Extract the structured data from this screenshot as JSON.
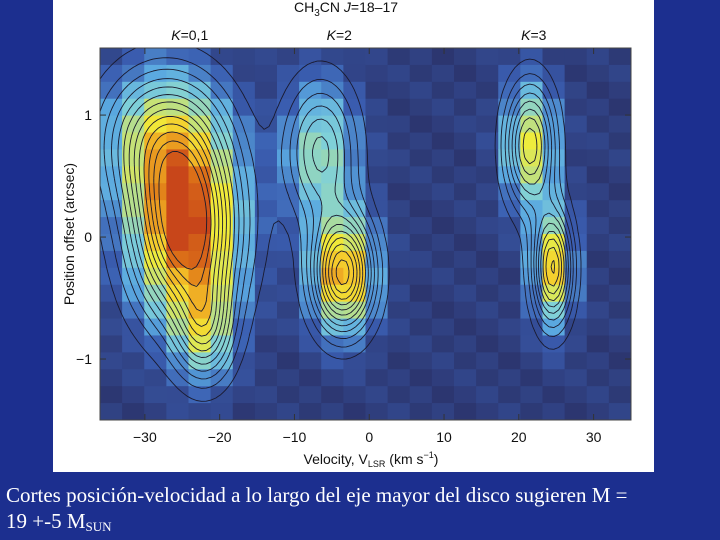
{
  "slide": {
    "background_color": "#1c2f8f",
    "caption_line1": "Cortes posición-velocidad a lo largo del eje mayor del disco sugieren M =",
    "caption_line2_prefix": "19 +-5 M",
    "caption_line2_subscript": "SUN"
  },
  "chart_data": {
    "type": "heatmap",
    "title": "CH3CN J=18–17",
    "title_parts": {
      "molecule": "CH",
      "sub1": "3",
      "molecule2": "CN ",
      "italic_j": "J",
      "transition": "=18–17"
    },
    "panel_labels": [
      {
        "text": "K=0,1",
        "x": -24
      },
      {
        "text": "K=2",
        "x": -4
      },
      {
        "text": "K=3",
        "x": 22
      }
    ],
    "xlabel": "Velocity, V",
    "xlabel_sub": "LSR",
    "xlabel_unit": " (km s",
    "xlabel_unit_sup": "−1",
    "xlabel_unit_end": ")",
    "ylabel": "Position offset (arcsec)",
    "xlim": [
      -36,
      35
    ],
    "ylim": [
      -1.5,
      1.55
    ],
    "x_ticks": [
      -30,
      -20,
      -10,
      0,
      10,
      20,
      30
    ],
    "x_tick_labels": [
      "−30",
      "−20",
      "−10",
      "0",
      "10",
      "20",
      "30"
    ],
    "y_ticks": [
      1,
      0,
      -1
    ],
    "y_tick_labels": [
      "1",
      "0",
      "−1"
    ],
    "grid": false,
    "colormap": [
      "#2c3670",
      "#3a5db0",
      "#5aa8e0",
      "#7fd0d8",
      "#b8df8a",
      "#f0ec3a",
      "#f5c52a",
      "#e07a18",
      "#c8461a"
    ],
    "components": [
      {
        "name": "K=0,1 main",
        "v": -24.5,
        "y": 0.05,
        "sv": 4.8,
        "sy": 0.5,
        "amp": 1.0
      },
      {
        "name": "K=0,1 upper",
        "v": -27.5,
        "y": 0.8,
        "sv": 5.5,
        "sy": 0.4,
        "amp": 0.55
      },
      {
        "name": "K=0,1 lower tail",
        "v": -22.0,
        "y": -0.75,
        "sv": 2.6,
        "sy": 0.3,
        "amp": 0.45
      },
      {
        "name": "K=2 lower",
        "v": -3.5,
        "y": -0.3,
        "sv": 2.8,
        "sy": 0.32,
        "amp": 0.88
      },
      {
        "name": "K=2 upper",
        "v": -6.5,
        "y": 0.7,
        "sv": 3.3,
        "sy": 0.4,
        "amp": 0.45
      },
      {
        "name": "K=3 upper",
        "v": 21.5,
        "y": 0.75,
        "sv": 2.3,
        "sy": 0.35,
        "amp": 0.62
      },
      {
        "name": "K=3 lower",
        "v": 24.5,
        "y": -0.25,
        "sv": 1.8,
        "sy": 0.32,
        "amp": 0.72
      }
    ],
    "contour_levels": [
      0.08,
      0.15,
      0.22,
      0.29,
      0.36,
      0.43,
      0.5,
      0.57,
      0.64,
      0.71,
      0.78,
      0.85,
      0.92
    ]
  }
}
